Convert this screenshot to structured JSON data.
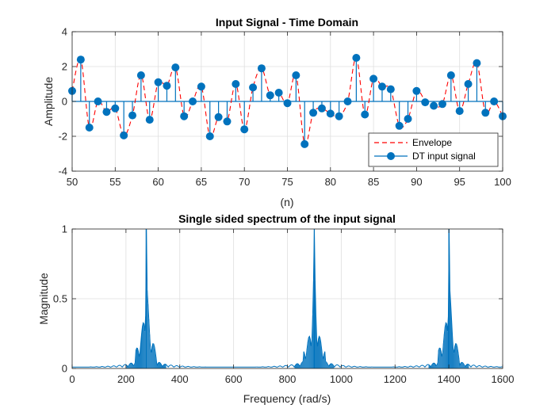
{
  "chart_data": [
    {
      "type": "line",
      "title": "Input Signal - Time Domain",
      "xlabel": "(n)",
      "ylabel": "Amplitude",
      "xlim": [
        50,
        100
      ],
      "ylim": [
        -4,
        4
      ],
      "xticks": [
        50,
        55,
        60,
        65,
        70,
        75,
        80,
        85,
        90,
        95,
        100
      ],
      "yticks": [
        -4,
        -2,
        0,
        2,
        4
      ],
      "grid": true,
      "legend": "bottom-right",
      "series": [
        {
          "name": "Envelope",
          "style": "dashed",
          "color": "#ff0000",
          "x": [
            50,
            51,
            52,
            53,
            54,
            55,
            56,
            57,
            58,
            59,
            60,
            61,
            62,
            63,
            64,
            65,
            66,
            67,
            68,
            69,
            70,
            71,
            72,
            73,
            74,
            75,
            76,
            77,
            78,
            79,
            80,
            81,
            82,
            83,
            84,
            85,
            86,
            87,
            88,
            89,
            90,
            91,
            92,
            93,
            94,
            95,
            96,
            97,
            98,
            99,
            100
          ],
          "values": [
            0.6,
            2.4,
            -1.5,
            0.0,
            -0.6,
            -0.4,
            -1.95,
            -0.8,
            1.5,
            -1.05,
            1.1,
            0.9,
            1.95,
            -0.85,
            0.0,
            0.85,
            -2.0,
            -0.9,
            -1.15,
            1.0,
            -1.6,
            0.8,
            1.9,
            0.35,
            0.5,
            -0.1,
            1.5,
            -2.45,
            -0.65,
            -0.4,
            -0.7,
            -0.85,
            0.0,
            2.5,
            -0.75,
            1.3,
            0.85,
            0.7,
            -1.4,
            -1.0,
            0.6,
            0.05,
            -0.25,
            -0.15,
            1.5,
            -0.55,
            1.0,
            2.2,
            -0.65,
            0.0,
            -0.85
          ]
        },
        {
          "name": "DT input signal",
          "style": "stem",
          "color": "#0072bd",
          "x": [
            50,
            51,
            52,
            53,
            54,
            55,
            56,
            57,
            58,
            59,
            60,
            61,
            62,
            63,
            64,
            65,
            66,
            67,
            68,
            69,
            70,
            71,
            72,
            73,
            74,
            75,
            76,
            77,
            78,
            79,
            80,
            81,
            82,
            83,
            84,
            85,
            86,
            87,
            88,
            89,
            90,
            91,
            92,
            93,
            94,
            95,
            96,
            97,
            98,
            99,
            100
          ],
          "values": [
            0.6,
            2.4,
            -1.5,
            0.0,
            -0.6,
            -0.4,
            -1.95,
            -0.8,
            1.5,
            -1.05,
            1.1,
            0.9,
            1.95,
            -0.85,
            0.0,
            0.85,
            -2.0,
            -0.9,
            -1.15,
            1.0,
            -1.6,
            0.8,
            1.9,
            0.35,
            0.5,
            -0.1,
            1.5,
            -2.45,
            -0.65,
            -0.4,
            -0.7,
            -0.85,
            0.0,
            2.5,
            -0.75,
            1.3,
            0.85,
            0.7,
            -1.4,
            -1.0,
            0.6,
            -0.05,
            -0.25,
            -0.15,
            1.5,
            -0.55,
            1.0,
            2.2,
            -0.65,
            0.0,
            -0.85
          ]
        }
      ]
    },
    {
      "type": "line",
      "title": "Single sided spectrum of the input signal",
      "xlabel": "Frequency (rad/s)",
      "ylabel": "Magnitude",
      "xlim": [
        0,
        1600
      ],
      "ylim": [
        0,
        1
      ],
      "xticks": [
        0,
        200,
        400,
        600,
        800,
        1000,
        1200,
        1400,
        1600
      ],
      "yticks": [
        0,
        0.5,
        1
      ],
      "grid": true,
      "color": "#0072bd",
      "peaks": [
        {
          "frequency": 275,
          "magnitude": 1.0
        },
        {
          "frequency": 900,
          "magnitude": 1.0
        },
        {
          "frequency": 1400,
          "magnitude": 1.0
        }
      ],
      "baseline_magnitude": 0.01
    }
  ]
}
